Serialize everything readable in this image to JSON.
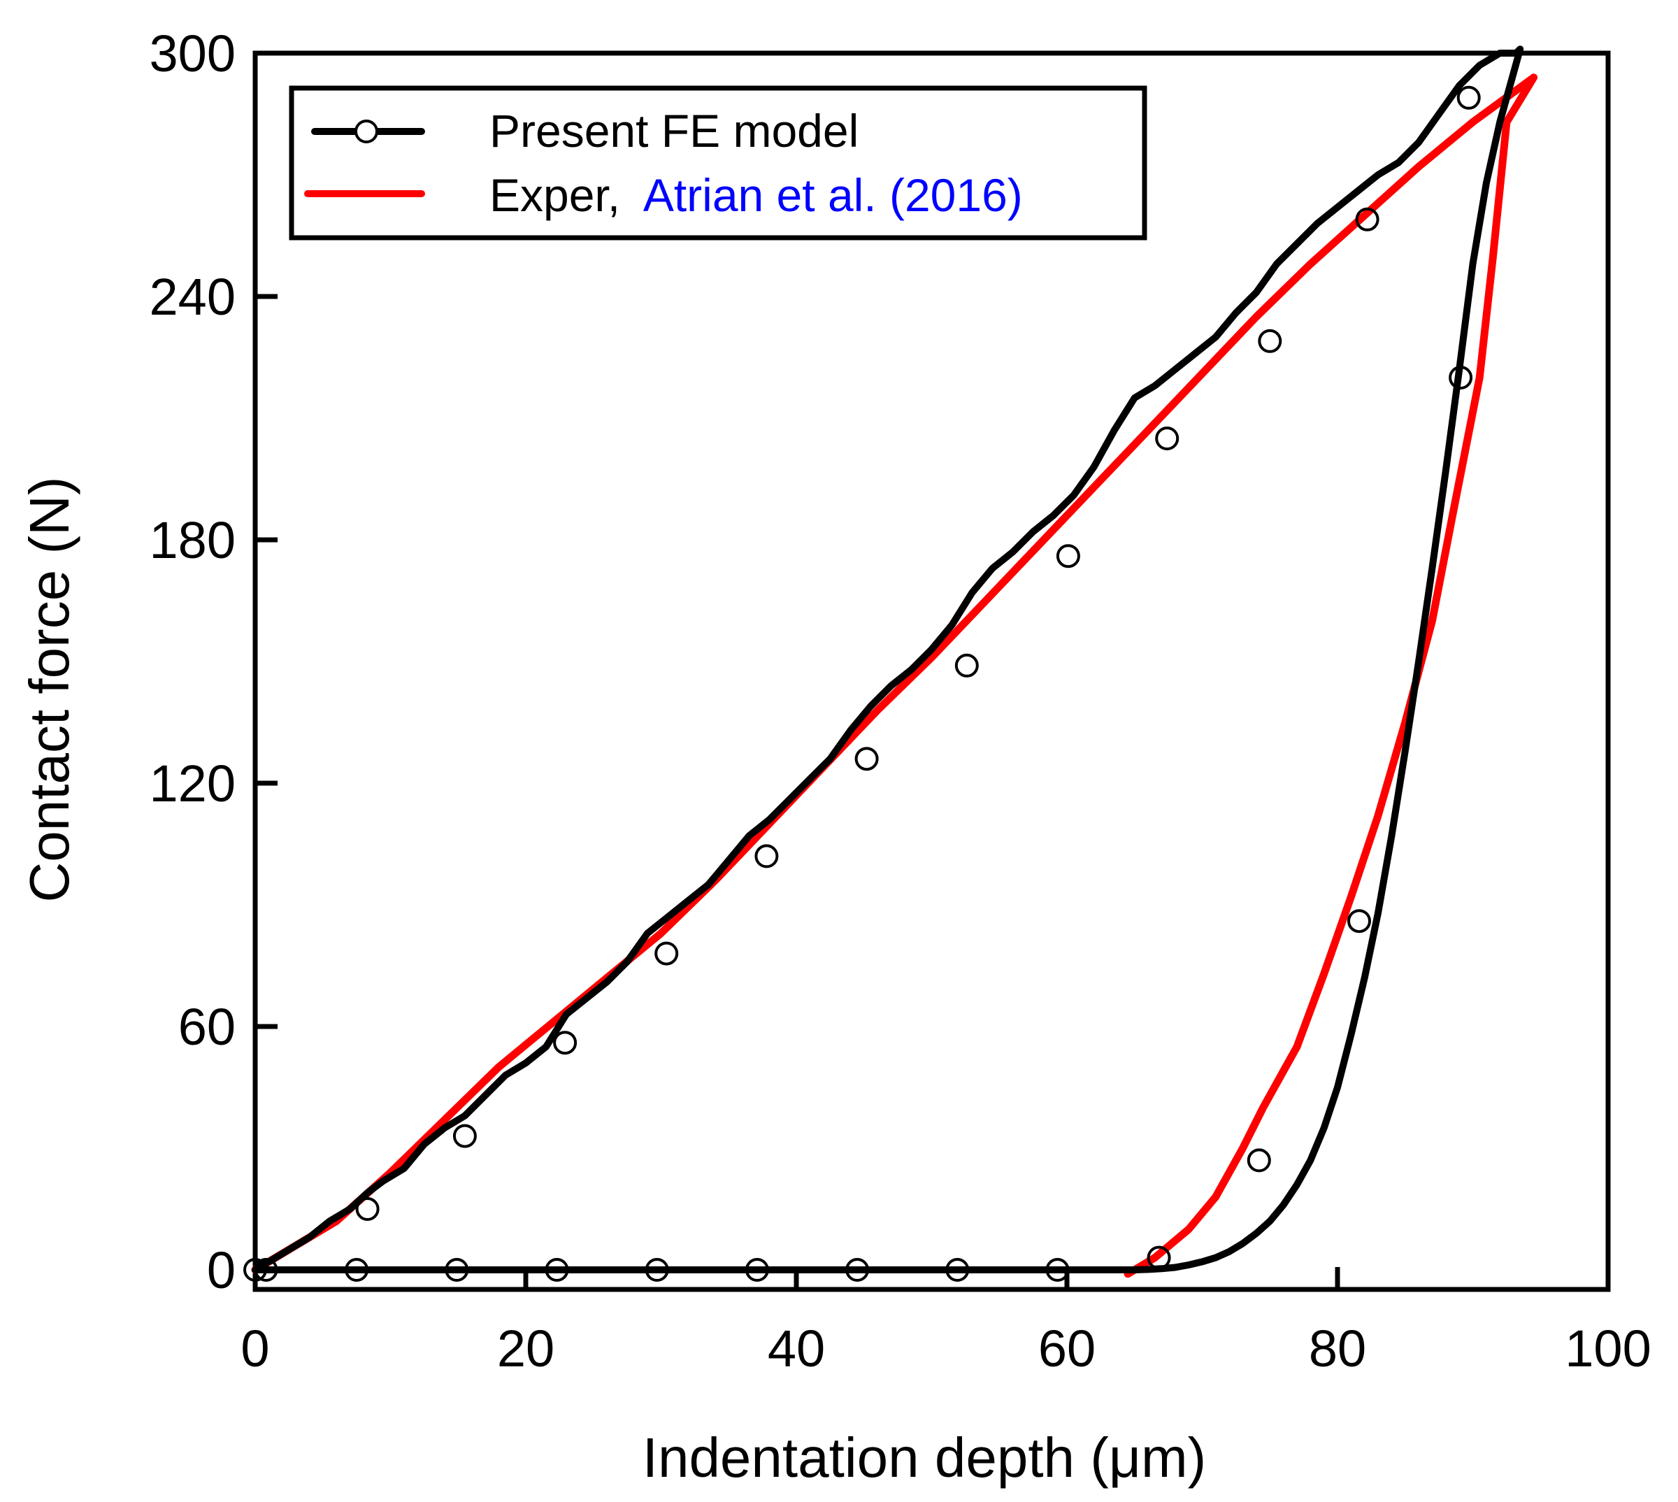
{
  "colors": {
    "model": "#000000",
    "experiment": "#ff0000",
    "citation": "#0000ff"
  },
  "chart_data": {
    "type": "line",
    "xlabel": "Indentation depth (μm)",
    "ylabel": "Contact force (N)",
    "xlim": [
      0,
      100
    ],
    "ylim": [
      0,
      300
    ],
    "x_ticks": [
      "0",
      "20",
      "40",
      "60",
      "80",
      "100"
    ],
    "y_ticks": [
      "0",
      "60",
      "120",
      "180",
      "240",
      "300"
    ],
    "grid": false,
    "legend_position": "top-left",
    "legend": {
      "model_label": "Present FE model",
      "exp_prefix": "Exper,",
      "exp_citation": "Atrian et al. (2016)"
    },
    "series": [
      {
        "name": "Present FE model",
        "color": "#000000",
        "marker": "open-circle",
        "x": [
          0,
          1,
          2.5,
          4,
          5.5,
          7,
          8.3,
          9.5,
          11,
          12.5,
          14,
          15.5,
          17,
          18.5,
          20,
          21.5,
          23,
          24.5,
          26,
          27.5,
          29,
          30.5,
          32,
          33.5,
          35,
          36.5,
          38,
          39.5,
          41,
          42.5,
          44,
          45.5,
          47,
          48.5,
          50,
          51.5,
          53,
          54.5,
          56,
          57.5,
          59,
          60.5,
          62,
          63.5,
          65,
          66.5,
          68,
          69.5,
          71,
          72.5,
          74,
          75.5,
          77,
          78.5,
          80,
          81.5,
          83,
          84.5,
          86,
          87.5,
          89,
          90.5,
          92,
          93.2,
          93.5,
          93,
          92,
          91,
          90,
          89,
          88,
          87,
          86,
          85,
          84,
          83,
          82,
          81,
          80,
          79,
          78,
          77,
          76,
          75,
          74,
          73,
          72,
          71,
          70,
          69,
          68,
          67,
          66,
          65,
          64.5,
          64,
          60,
          55,
          50,
          45,
          40,
          35,
          30,
          25,
          20,
          15,
          10,
          5,
          0
        ],
        "y": [
          0,
          2,
          5,
          8,
          12,
          15,
          19,
          22,
          25,
          31,
          35,
          38,
          43,
          48,
          51,
          55,
          63,
          67,
          71,
          76,
          83,
          87,
          91,
          95,
          101,
          107,
          111,
          116,
          121,
          126,
          133,
          139,
          144,
          148,
          153,
          159,
          167,
          173,
          177,
          182,
          186,
          191,
          198,
          207,
          215,
          218,
          222,
          226,
          230,
          236,
          241,
          248,
          253,
          258,
          262,
          266,
          270,
          273,
          278,
          285,
          292,
          297,
          300,
          300,
          301,
          295,
          283,
          268,
          248,
          222,
          197,
          173,
          150,
          128,
          107,
          88,
          72,
          58,
          45,
          35,
          27,
          21,
          16,
          12,
          9,
          6.5,
          4.5,
          3,
          2,
          1.2,
          0.6,
          0.3,
          0.1,
          0,
          0,
          0,
          0,
          0,
          0,
          0,
          0,
          0,
          0,
          0,
          0,
          0,
          0,
          0,
          0
        ],
        "marker_x": [
          0,
          0.8,
          8.3,
          15.5,
          22.9,
          30.4,
          37.8,
          45.2,
          52.6,
          60.1,
          67.4,
          75,
          82.2,
          89.7,
          89.1,
          81.6,
          74.2,
          66.8,
          59.3,
          51.9,
          44.5,
          37.1,
          29.7,
          22.3,
          14.9,
          7.5
        ],
        "marker_y": [
          0,
          0,
          15,
          33,
          56,
          78,
          102,
          126,
          149,
          176,
          205,
          229,
          259,
          289,
          220,
          86,
          27,
          3,
          0,
          0,
          0,
          0,
          0,
          0,
          0,
          0
        ]
      },
      {
        "name": "Exper, Atrian et al. (2016)",
        "color": "#ff0000",
        "x": [
          0,
          3,
          6,
          10,
          14,
          18,
          22,
          26,
          30,
          34,
          38,
          42,
          46,
          50,
          54,
          58,
          62,
          66,
          70,
          74,
          78,
          82,
          86,
          90,
          94.5,
          92.5,
          91.5,
          90.5,
          88.5,
          87,
          85,
          83,
          81,
          79,
          77,
          76,
          74.5,
          73,
          71,
          69,
          66.5,
          64.5
        ],
        "y": [
          0,
          6,
          12,
          24,
          37,
          50,
          61,
          72,
          83,
          96,
          110,
          124,
          138,
          151,
          165,
          179,
          193,
          207,
          221,
          235,
          248,
          260,
          272,
          283,
          294,
          283,
          250,
          220,
          186,
          160,
          135,
          112,
          92,
          73,
          55,
          49,
          40,
          30,
          18,
          10,
          3,
          -1
        ]
      }
    ]
  }
}
